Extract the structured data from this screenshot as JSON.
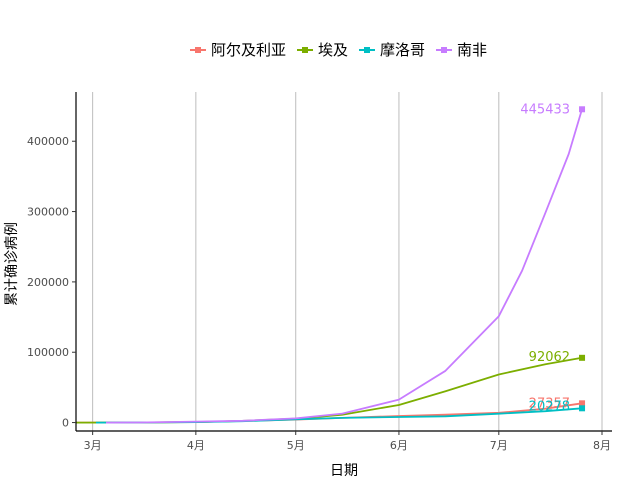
{
  "chart_data": {
    "type": "line",
    "xlabel": "日期",
    "ylabel": "累计确诊病例",
    "x_tick_labels": [
      "3月",
      "4月",
      "5月",
      "6月",
      "7月",
      "8月"
    ],
    "y_ticks": [
      0,
      100000,
      200000,
      300000,
      400000
    ],
    "y_tick_labels": [
      "0",
      "100000",
      "200000",
      "300000",
      "400000"
    ],
    "xlim": [
      "2020-02-25",
      "2020-08-04"
    ],
    "ylim": [
      -12000,
      470000
    ],
    "legend_position": "top",
    "grid": "vertical-major",
    "series": [
      {
        "name": "阿尔及利亚",
        "color": "#F8766D",
        "end_label": "27357",
        "points": [
          [
            "2020-02-25",
            1
          ],
          [
            "2020-03-15",
            48
          ],
          [
            "2020-04-01",
            847
          ],
          [
            "2020-04-15",
            2160
          ],
          [
            "2020-05-01",
            4154
          ],
          [
            "2020-05-15",
            6629
          ],
          [
            "2020-06-01",
            9394
          ],
          [
            "2020-06-15",
            11147
          ],
          [
            "2020-07-01",
            13907
          ],
          [
            "2020-07-15",
            19689
          ],
          [
            "2020-07-26",
            27357
          ]
        ]
      },
      {
        "name": "埃及",
        "color": "#7CAE00",
        "end_label": "92062",
        "points": [
          [
            "2020-02-25",
            1
          ],
          [
            "2020-03-15",
            110
          ],
          [
            "2020-04-01",
            710
          ],
          [
            "2020-04-15",
            2350
          ],
          [
            "2020-05-01",
            5537
          ],
          [
            "2020-05-15",
            11228
          ],
          [
            "2020-06-01",
            24985
          ],
          [
            "2020-06-15",
            44598
          ],
          [
            "2020-07-01",
            68311
          ],
          [
            "2020-07-15",
            83001
          ],
          [
            "2020-07-26",
            92062
          ]
        ]
      },
      {
        "name": "摩洛哥",
        "color": "#00BFC4",
        "end_label": "20278",
        "points": [
          [
            "2020-03-02",
            1
          ],
          [
            "2020-03-15",
            28
          ],
          [
            "2020-04-01",
            654
          ],
          [
            "2020-04-15",
            1888
          ],
          [
            "2020-05-01",
            4569
          ],
          [
            "2020-05-15",
            6652
          ],
          [
            "2020-06-01",
            7866
          ],
          [
            "2020-06-15",
            8931
          ],
          [
            "2020-07-01",
            12533
          ],
          [
            "2020-07-15",
            16097
          ],
          [
            "2020-07-26",
            20278
          ]
        ]
      },
      {
        "name": "南非",
        "color": "#C77CFF",
        "end_label": "445433",
        "points": [
          [
            "2020-03-05",
            1
          ],
          [
            "2020-03-15",
            51
          ],
          [
            "2020-04-01",
            1380
          ],
          [
            "2020-04-15",
            2506
          ],
          [
            "2020-05-01",
            5951
          ],
          [
            "2020-05-15",
            12739
          ],
          [
            "2020-06-01",
            32683
          ],
          [
            "2020-06-15",
            73533
          ],
          [
            "2020-07-01",
            151209
          ],
          [
            "2020-07-08",
            215855
          ],
          [
            "2020-07-15",
            298292
          ],
          [
            "2020-07-22",
            381798
          ],
          [
            "2020-07-26",
            445433
          ]
        ]
      }
    ]
  }
}
